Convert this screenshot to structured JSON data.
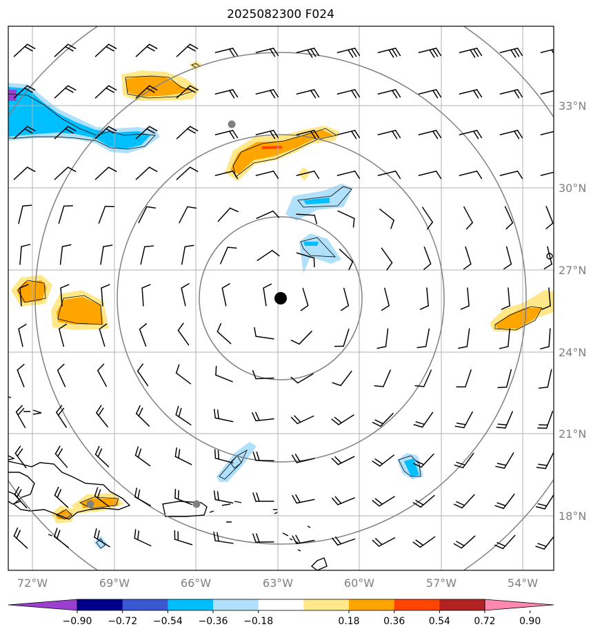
{
  "title": "2025082300 F024",
  "map": {
    "projection": "polar-stereographic",
    "center": {
      "lon": -63.0,
      "lat": 26.0,
      "symbol": "black-dot"
    },
    "lon_labels": [
      "72°W",
      "69°W",
      "66°W",
      "63°W",
      "60°W",
      "57°W",
      "54°W"
    ],
    "lat_labels": [
      "33°N",
      "30°N",
      "27°N",
      "24°N",
      "21°N",
      "18°N"
    ],
    "range_rings": 4,
    "gray_markers": [
      "gray-dot",
      "gray-dot",
      "gray-dot"
    ],
    "features": [
      "coastlines",
      "wind-barbs",
      "filled-contours"
    ]
  },
  "colorbar": {
    "ticks": [
      "−0.90",
      "−0.72",
      "−0.54",
      "−0.36",
      "−0.18",
      "0.18",
      "0.36",
      "0.54",
      "0.72",
      "0.90"
    ],
    "colors": [
      "#9a3fd0",
      "#00008b",
      "#3a56d0",
      "#00bfff",
      "#b0e0fa",
      "#ffffff",
      "#ffe88a",
      "#ffa500",
      "#ff4500",
      "#b22222",
      "#ff88b0"
    ],
    "extend": "both"
  }
}
